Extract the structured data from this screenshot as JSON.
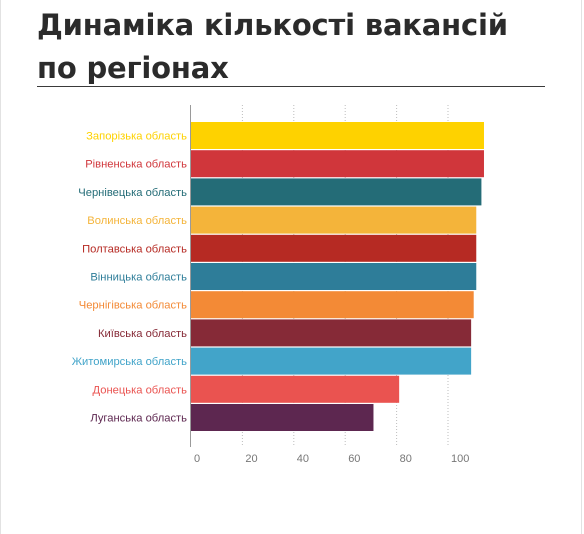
{
  "page": {
    "title": "Динаміка кількості вакансій по регіонах"
  },
  "chart_data": {
    "type": "bar",
    "orientation": "horizontal",
    "title": "Динаміка кількості вакансій по регіонах",
    "xlabel": "",
    "ylabel": "",
    "xlim": [
      0,
      114
    ],
    "x_ticks": [
      0,
      20,
      40,
      60,
      80,
      100
    ],
    "grid": true,
    "legend": "none",
    "categories": [
      "Запорізька область",
      "Рівненська область",
      "Чернівецька область",
      "Волинська область",
      "Полтавська область",
      "Вінницька область",
      "Чернігівська область",
      "Київська область",
      "Житомирська область",
      "Донецька область",
      "Луганська область"
    ],
    "values": [
      114,
      114,
      113,
      111,
      111,
      111,
      110,
      109,
      109,
      81,
      71
    ],
    "colors": [
      "#fed200",
      "#d0363b",
      "#246c77",
      "#f4b43a",
      "#b62a23",
      "#2e7d99",
      "#f38a36",
      "#862a37",
      "#42a4c9",
      "#ea5350",
      "#5d2750"
    ],
    "tick_label_color": "#777777"
  }
}
